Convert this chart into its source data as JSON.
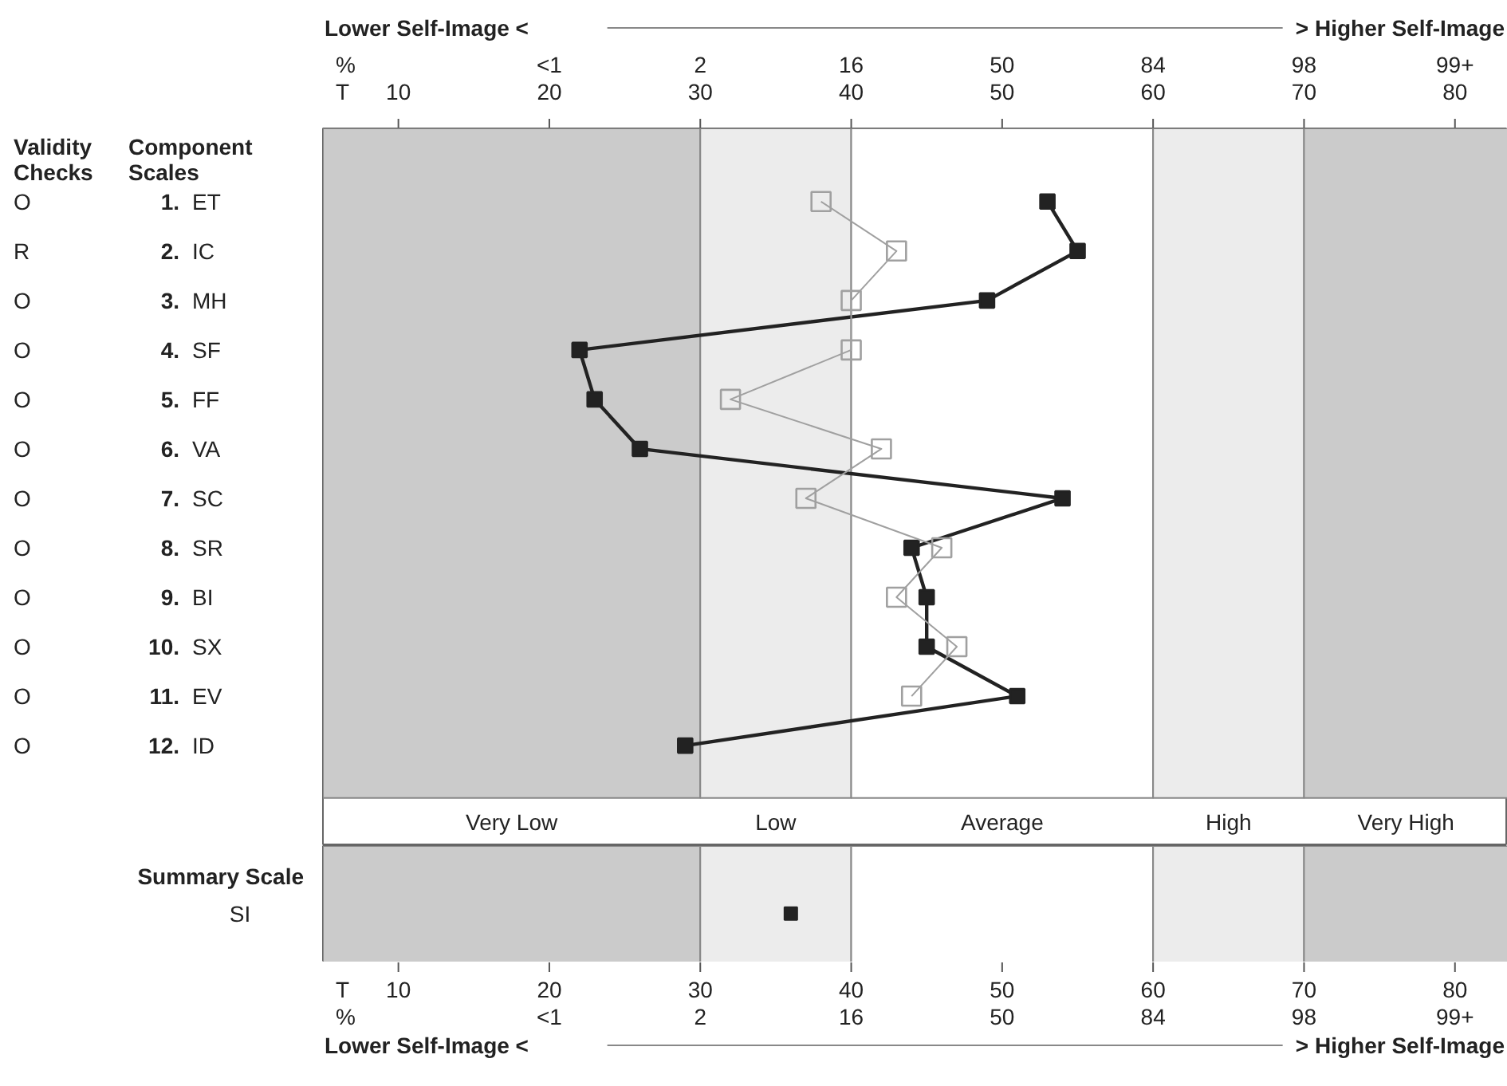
{
  "chart_data": [
    {
      "type": "line",
      "orientation": "horizontal",
      "annotations": [
        "Validity\nChecks",
        "Component\nScales",
        "Lower Self-Image <",
        "> Higher Self-Image",
        "<1",
        "2",
        "16",
        "50",
        "84",
        "98",
        "99+"
      ],
      "categories": [
        "1. ET",
        "2. IC",
        "3. MH",
        "4. SF",
        "5. FF",
        "6. VA",
        "7. SC",
        "8. SR",
        "9. BI",
        "10. SX",
        "11. EV",
        "12. ID"
      ],
      "y2_categories": [
        "O",
        "R",
        "O",
        "O",
        "O",
        "O",
        "O",
        "O",
        "O",
        "O",
        "O",
        "O"
      ],
      "series": [
        {
          "color": "#222222",
          "values": [
            53,
            55,
            49,
            22,
            23,
            26,
            54,
            44,
            45,
            45,
            51,
            29
          ]
        },
        {
          "color": "#a0a0a0",
          "values": [
            38,
            43,
            40,
            40,
            32,
            42,
            37,
            46,
            43,
            47,
            44,
            null
          ]
        }
      ],
      "marker": "square",
      "xlabel": "T",
      "x2label": "%",
      "xlim": [
        5,
        83.5
      ],
      "xticks": [
        10,
        20,
        30,
        40,
        50,
        60,
        70,
        80
      ],
      "bands": [
        {
          "axis": "x",
          "from": 5,
          "to": 30,
          "label": "Very Low",
          "color": "#cbcbcb"
        },
        {
          "axis": "x",
          "from": 30,
          "to": 40,
          "label": "Low",
          "color": "#ececec"
        },
        {
          "axis": "x",
          "from": 40,
          "to": 60,
          "label": "Average",
          "color": "#ffffff"
        },
        {
          "axis": "x",
          "from": 60,
          "to": 70,
          "label": "High",
          "color": "#ececec"
        },
        {
          "axis": "x",
          "from": 70,
          "to": 83.5,
          "label": "Very High",
          "color": "#cbcbcb"
        }
      ],
      "grid": false
    },
    {
      "type": "scatter",
      "orientation": "horizontal",
      "title": "Summary Scale",
      "categories": [
        "SI"
      ],
      "values": [
        36
      ],
      "color": "#222222",
      "marker": "square",
      "xlabel": "T",
      "x2label": "%",
      "xlim": [
        5,
        83.5
      ],
      "xticks": [
        10,
        20,
        30,
        40,
        50,
        60,
        70,
        80
      ],
      "annotations": [
        "Lower Self-Image <",
        "> Higher Self-Image",
        "<1",
        "2",
        "16",
        "50",
        "84",
        "98",
        "99+"
      ],
      "bands": [
        {
          "axis": "x",
          "from": 5,
          "to": 30,
          "color": "#cbcbcb"
        },
        {
          "axis": "x",
          "from": 30,
          "to": 40,
          "color": "#ececec"
        },
        {
          "axis": "x",
          "from": 40,
          "to": 60,
          "color": "#ffffff"
        },
        {
          "axis": "x",
          "from": 60,
          "to": 70,
          "color": "#ececec"
        },
        {
          "axis": "x",
          "from": 70,
          "to": 83.5,
          "color": "#cbcbcb"
        }
      ],
      "grid": false
    }
  ]
}
